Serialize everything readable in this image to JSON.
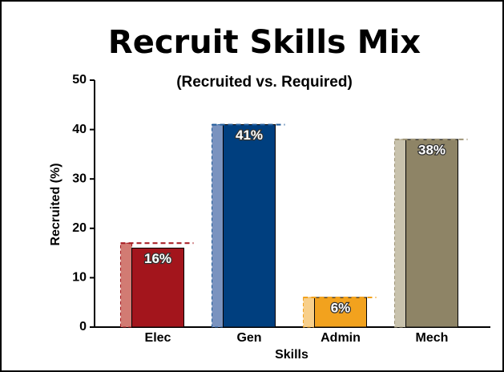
{
  "chart_data": {
    "type": "bar",
    "title": "Recruit Skills Mix",
    "subtitle": "(Recruited vs. Required)",
    "y_label": "Recruited (%)",
    "x_label": "Skills",
    "categories": [
      "Elec",
      "Gen",
      "Admin",
      "Mech"
    ],
    "series": [
      {
        "colors": [
          "#a3151c",
          "#003f7f",
          "#f2a21e",
          "#8e8466"
        ],
        "values": [
          16,
          41,
          6,
          38
        ],
        "value_labels": [
          "16%",
          "41%",
          "6%",
          "38%"
        ]
      },
      {
        "colors": [
          "#d27b73",
          "#7a93bf",
          "#f8cf8a",
          "#c8c2ad"
        ],
        "line_colors": [
          "#a3151c",
          "#1f5a99",
          "#f2a21e",
          "#9e9476"
        ],
        "values": [
          17,
          41,
          6,
          38
        ]
      }
    ],
    "ylim": [
      0,
      50
    ],
    "yticks": [
      0,
      10,
      20,
      30,
      40,
      50
    ]
  }
}
